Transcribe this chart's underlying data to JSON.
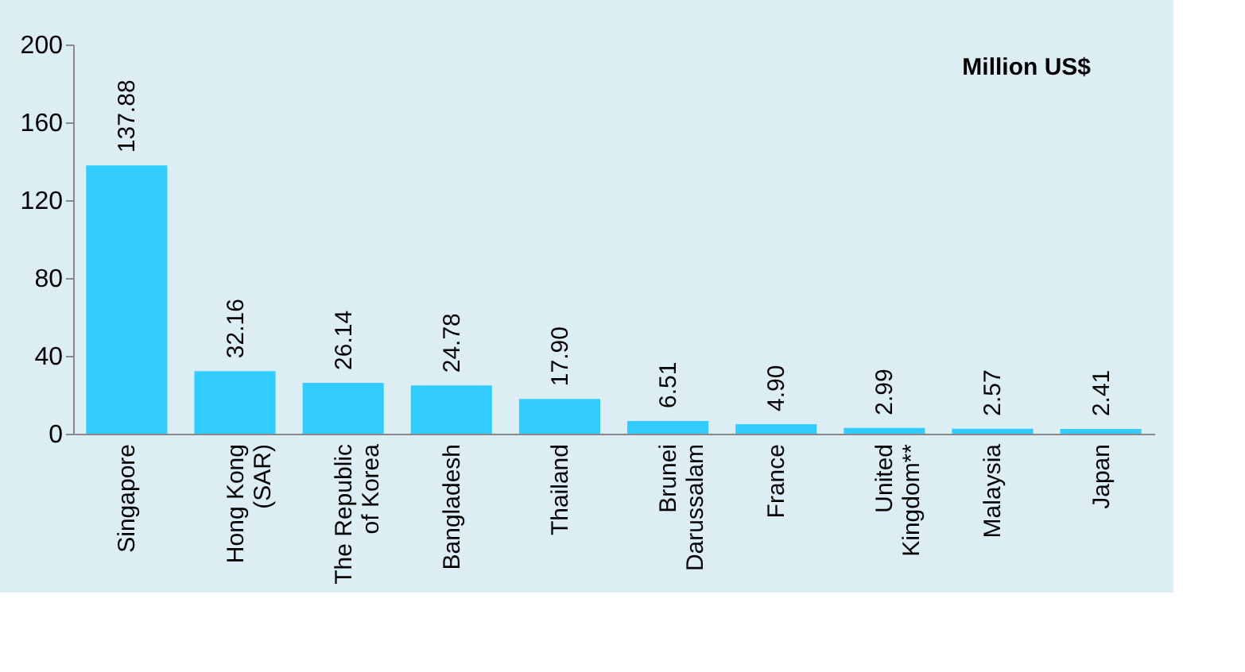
{
  "chart_data": {
    "type": "bar",
    "categories": [
      "Singapore",
      "Hong  Kong\n(SAR)",
      "The Republic\nof Korea",
      "Bangladesh",
      "Thailand",
      "Brunei\nDarussalam",
      "France",
      "United\nKingdom**",
      "Malaysia",
      "Japan"
    ],
    "values": [
      137.88,
      32.16,
      26.14,
      24.78,
      17.9,
      6.51,
      4.9,
      2.99,
      2.57,
      2.41
    ],
    "value_labels": [
      "137.88",
      "32.16",
      "26.14",
      "24.78",
      "17.90",
      "6.51",
      "4.90",
      "2.99",
      "2.57",
      "2.41"
    ],
    "color": "#33ccff",
    "ylim": [
      0,
      200
    ],
    "yticks": [
      0,
      40,
      80,
      120,
      160,
      200
    ],
    "grid": false,
    "annotations": [
      "Million US$"
    ]
  }
}
